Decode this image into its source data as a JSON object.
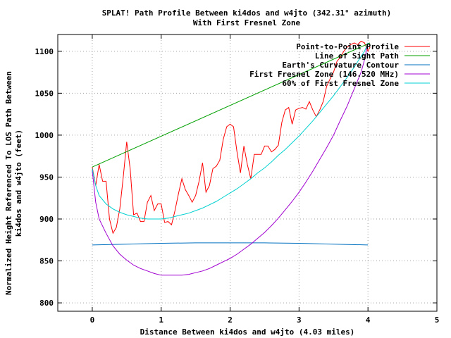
{
  "chart_data": {
    "type": "line",
    "title": "SPLAT! Path Profile Between ki4dos and w4jto (342.31° azimuth)",
    "subtitle": "With First Fresnel Zone",
    "xlabel": "Distance Between ki4dos and w4jto (4.03 miles)",
    "ylabel_line1": "Normalized Height Referenced To LOS Path Between",
    "ylabel_line2": "ki4dos and w4jto (feet)",
    "xlim": [
      -0.5,
      5
    ],
    "ylim": [
      790,
      1120
    ],
    "xticks": [
      0,
      1,
      2,
      3,
      4,
      5
    ],
    "yticks": [
      800,
      850,
      900,
      950,
      1000,
      1050,
      1100
    ],
    "grid": true,
    "legend_position": "top-right",
    "series": [
      {
        "name": "Point-to-Point Profile",
        "color": "#ff0000",
        "x": [
          0,
          0.05,
          0.1,
          0.15,
          0.2,
          0.25,
          0.3,
          0.35,
          0.4,
          0.45,
          0.5,
          0.55,
          0.6,
          0.65,
          0.7,
          0.75,
          0.8,
          0.85,
          0.9,
          0.95,
          1.0,
          1.05,
          1.1,
          1.15,
          1.2,
          1.25,
          1.3,
          1.35,
          1.4,
          1.45,
          1.5,
          1.55,
          1.6,
          1.65,
          1.7,
          1.75,
          1.8,
          1.85,
          1.9,
          1.95,
          2.0,
          2.05,
          2.1,
          2.15,
          2.2,
          2.25,
          2.3,
          2.35,
          2.4,
          2.45,
          2.5,
          2.55,
          2.6,
          2.65,
          2.7,
          2.75,
          2.8,
          2.85,
          2.9,
          2.95,
          3.0,
          3.05,
          3.1,
          3.15,
          3.2,
          3.25,
          3.3,
          3.35,
          3.4,
          3.45,
          3.5,
          3.55,
          3.6,
          3.65,
          3.7,
          3.75,
          3.8,
          3.85,
          3.9,
          3.95,
          4.0,
          4.03
        ],
        "values": [
          962,
          940,
          965,
          945,
          945,
          900,
          883,
          890,
          912,
          950,
          992,
          960,
          905,
          907,
          897,
          897,
          920,
          928,
          910,
          918,
          918,
          896,
          897,
          893,
          910,
          930,
          948,
          935,
          928,
          920,
          928,
          945,
          967,
          932,
          940,
          960,
          963,
          970,
          995,
          1010,
          1013,
          1010,
          980,
          955,
          987,
          965,
          948,
          977,
          977,
          977,
          987,
          987,
          980,
          983,
          988,
          1015,
          1030,
          1033,
          1013,
          1030,
          1032,
          1033,
          1031,
          1040,
          1030,
          1022,
          1030,
          1040,
          1058,
          1067,
          1075,
          1088,
          1093,
          1100,
          1105,
          1108,
          1110,
          1108,
          1112,
          1110,
          1100,
          1105
        ]
      },
      {
        "name": "Line of Sight Path",
        "color": "#00a000",
        "x": [
          0,
          4.03
        ],
        "values": [
          962,
          1110
        ]
      },
      {
        "name": "Earth's Curvature Contour",
        "color": "#0070c0",
        "x": [
          0,
          0.5,
          1.0,
          1.5,
          2.0,
          2.5,
          3.0,
          3.5,
          4.0
        ],
        "values": [
          869,
          870,
          871,
          871.5,
          871.5,
          871.5,
          871,
          870,
          869
        ]
      },
      {
        "name": "First Fresnel Zone (146.520 MHz)",
        "color": "#a000d0",
        "x": [
          0,
          0.05,
          0.1,
          0.2,
          0.3,
          0.4,
          0.5,
          0.6,
          0.7,
          0.8,
          0.9,
          1.0,
          1.1,
          1.2,
          1.3,
          1.4,
          1.5,
          1.6,
          1.7,
          1.8,
          1.9,
          2.0,
          2.1,
          2.2,
          2.3,
          2.4,
          2.5,
          2.6,
          2.7,
          2.8,
          2.9,
          3.0,
          3.1,
          3.2,
          3.3,
          3.4,
          3.5,
          3.6,
          3.7,
          3.8,
          3.9,
          3.95,
          4.0
        ],
        "values": [
          958,
          920,
          900,
          883,
          868,
          858,
          851,
          845,
          841,
          838,
          835,
          833,
          833,
          833,
          833,
          834,
          836,
          838,
          841,
          845,
          849,
          853,
          858,
          864,
          870,
          877,
          884,
          892,
          901,
          911,
          921,
          932,
          944,
          957,
          971,
          985,
          1000,
          1018,
          1035,
          1055,
          1075,
          1090,
          1110
        ]
      },
      {
        "name": "60% of First Fresnel Zone",
        "color": "#00d0d0",
        "x": [
          0,
          0.05,
          0.1,
          0.2,
          0.3,
          0.4,
          0.5,
          0.6,
          0.7,
          0.8,
          0.9,
          1.0,
          1.1,
          1.2,
          1.3,
          1.4,
          1.5,
          1.6,
          1.7,
          1.8,
          1.9,
          2.0,
          2.1,
          2.2,
          2.3,
          2.4,
          2.5,
          2.6,
          2.7,
          2.8,
          2.9,
          3.0,
          3.1,
          3.2,
          3.3,
          3.4,
          3.5,
          3.6,
          3.7,
          3.8,
          3.9,
          3.95,
          4.0
        ],
        "values": [
          960,
          940,
          928,
          918,
          912,
          908,
          905,
          903,
          901,
          900,
          900,
          900,
          901,
          903,
          905,
          907,
          910,
          913,
          917,
          921,
          926,
          931,
          936,
          942,
          948,
          955,
          961,
          968,
          976,
          983,
          991,
          999,
          1008,
          1017,
          1027,
          1037,
          1047,
          1058,
          1069,
          1081,
          1094,
          1100,
          1110
        ]
      }
    ]
  }
}
